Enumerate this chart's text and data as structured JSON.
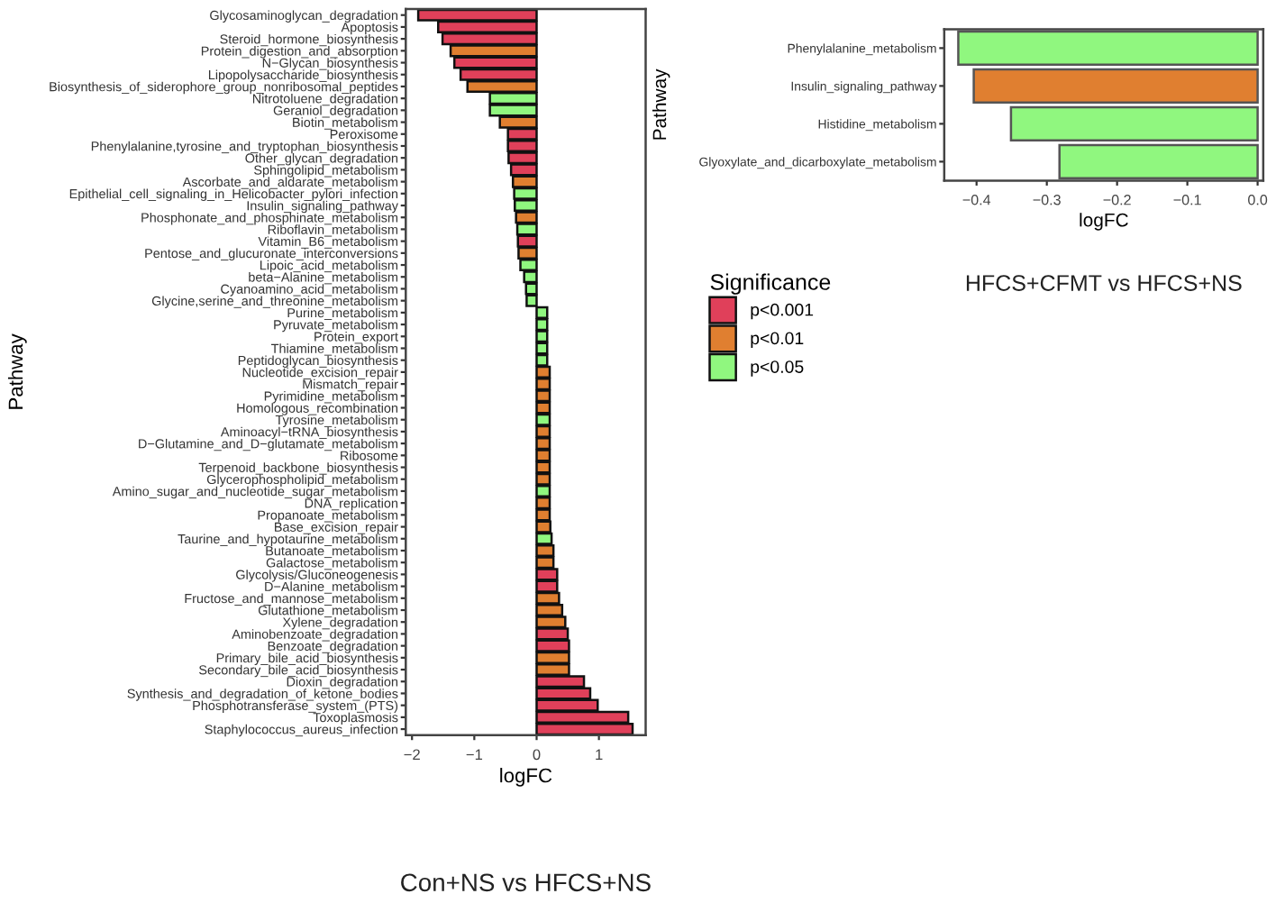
{
  "chart_data": [
    {
      "type": "bar",
      "orientation": "horizontal",
      "title": "Con+NS vs HFCS+NS",
      "xlabel": "logFC",
      "ylabel": "Pathway",
      "legend_title": "Significance",
      "legend": "right",
      "categories": [
        "Glycosaminoglycan_degradation",
        "Apoptosis",
        "Steroid_hormone_biosynthesis",
        "Protein_digestion_and_absorption",
        "N−Glycan_biosynthesis",
        "Lipopolysaccharide_biosynthesis",
        "Biosynthesis_of_siderophore_group_nonribosomal_peptides",
        "Nitrotoluene_degradation",
        "Geraniol_degradation",
        "Biotin_metabolism",
        "Peroxisome",
        "Phenylalanine,tyrosine_and_tryptophan_biosynthesis",
        "Other_glycan_degradation",
        "Sphingolipid_metabolism",
        "Ascorbate_and_aldarate_metabolism",
        "Epithelial_cell_signaling_in_Helicobacter_pylori_infection",
        "Insulin_signaling_pathway",
        "Phosphonate_and_phosphinate_metabolism",
        "Riboflavin_metabolism",
        "Vitamin_B6_metabolism",
        "Pentose_and_glucuronate_interconversions",
        "Lipoic_acid_metabolism",
        "beta−Alanine_metabolism",
        "Cyanoamino_acid_metabolism",
        "Glycine,serine_and_threonine_metabolism",
        "Purine_metabolism",
        "Pyruvate_metabolism",
        "Protein_export",
        "Thiamine_metabolism",
        "Peptidoglycan_biosynthesis",
        "Nucleotide_excision_repair",
        "Mismatch_repair",
        "Pyrimidine_metabolism",
        "Homologous_recombination",
        "Tyrosine_metabolism",
        "Aminoacyl−tRNA_biosynthesis",
        "D−Glutamine_and_D−glutamate_metabolism",
        "Ribosome",
        "Terpenoid_backbone_biosynthesis",
        "Glycerophospholipid_metabolism",
        "Amino_sugar_and_nucleotide_sugar_metabolism",
        "DNA_replication",
        "Propanoate_metabolism",
        "Base_excision_repair",
        "Taurine_and_hypotaurine_metabolism",
        "Butanoate_metabolism",
        "Galactose_metabolism",
        "Glycolysis/Gluconeogenesis",
        "D−Alanine_metabolism",
        "Fructose_and_mannose_metabolism",
        "Glutathione_metabolism",
        "Xylene_degradation",
        "Aminobenzoate_degradation",
        "Benzoate_degradation",
        "Primary_bile_acid_biosynthesis",
        "Secondary_bile_acid_biosynthesis",
        "Dioxin_degradation",
        "Synthesis_and_degradation_of_ketone_bodies",
        "Phosphotransferase_system_(PTS)",
        "Toxoplasmosis",
        "Staphylococcus_aureus_infection"
      ],
      "series": [
        {
          "name": "p<0.001",
          "color": "#e0405a",
          "values": [
            -1.9,
            -1.58,
            -1.51,
            null,
            -1.32,
            -1.22,
            null,
            null,
            null,
            null,
            -0.46,
            -0.46,
            -0.45,
            -0.41,
            null,
            null,
            null,
            null,
            null,
            -0.3,
            null,
            null,
            null,
            null,
            null,
            null,
            null,
            null,
            null,
            null,
            null,
            null,
            null,
            null,
            null,
            null,
            null,
            null,
            null,
            null,
            null,
            null,
            null,
            null,
            null,
            null,
            null,
            0.33,
            0.33,
            null,
            null,
            null,
            0.5,
            0.52,
            null,
            null,
            0.76,
            0.86,
            0.98,
            1.47,
            1.54
          ]
        },
        {
          "name": "p<0.01",
          "color": "#e07f30",
          "values": [
            null,
            null,
            null,
            -1.38,
            null,
            null,
            -1.11,
            null,
            null,
            -0.59,
            null,
            null,
            null,
            null,
            -0.38,
            null,
            null,
            -0.33,
            null,
            null,
            -0.29,
            null,
            null,
            null,
            null,
            null,
            null,
            null,
            null,
            null,
            0.21,
            0.21,
            0.21,
            0.21,
            null,
            0.21,
            0.21,
            0.21,
            0.21,
            0.21,
            null,
            0.21,
            0.21,
            0.22,
            null,
            0.27,
            0.27,
            null,
            null,
            0.36,
            0.41,
            0.46,
            null,
            null,
            0.52,
            0.52,
            null,
            null,
            null,
            null,
            null
          ]
        },
        {
          "name": "p<0.05",
          "color": "#90f77f",
          "values": [
            null,
            null,
            null,
            null,
            null,
            null,
            null,
            -0.75,
            -0.75,
            null,
            null,
            null,
            null,
            null,
            null,
            -0.36,
            -0.35,
            null,
            -0.31,
            null,
            null,
            -0.26,
            -0.2,
            -0.17,
            -0.16,
            0.17,
            0.17,
            0.17,
            0.17,
            0.17,
            null,
            null,
            null,
            null,
            0.21,
            null,
            null,
            null,
            null,
            null,
            0.21,
            null,
            null,
            null,
            0.24,
            null,
            null,
            null,
            null,
            null,
            null,
            null,
            null,
            null,
            null,
            null,
            null,
            null,
            null,
            null,
            null
          ]
        }
      ],
      "xlim": [
        -2.1,
        1.75
      ],
      "xticks": [
        {
          "value": -2,
          "label": "−2"
        },
        {
          "value": -1,
          "label": "−1"
        },
        0,
        1
      ]
    },
    {
      "type": "bar",
      "orientation": "horizontal",
      "title": "HFCS+CFMT vs HFCS+NS",
      "xlabel": "logFC",
      "ylabel": "Pathway",
      "categories": [
        "Phenylalanine_metabolism",
        "Insulin_signaling_pathway",
        "Histidine_metabolism",
        "Glyoxylate_and_dicarboxylate_metabolism"
      ],
      "values": [
        -0.426,
        -0.404,
        -0.351,
        -0.282
      ],
      "colors": [
        "#90f77f",
        "#e07f30",
        "#90f77f",
        "#90f77f"
      ],
      "xlim": [
        -0.446,
        0.008
      ],
      "xticks": [
        {
          "value": -0.4,
          "label": "−0.4"
        },
        {
          "value": -0.3,
          "label": "−0.3"
        },
        {
          "value": -0.2,
          "label": "−0.2"
        },
        {
          "value": -0.1,
          "label": "−0.1"
        },
        {
          "value": 0.0,
          "label": "0.0"
        }
      ]
    }
  ]
}
